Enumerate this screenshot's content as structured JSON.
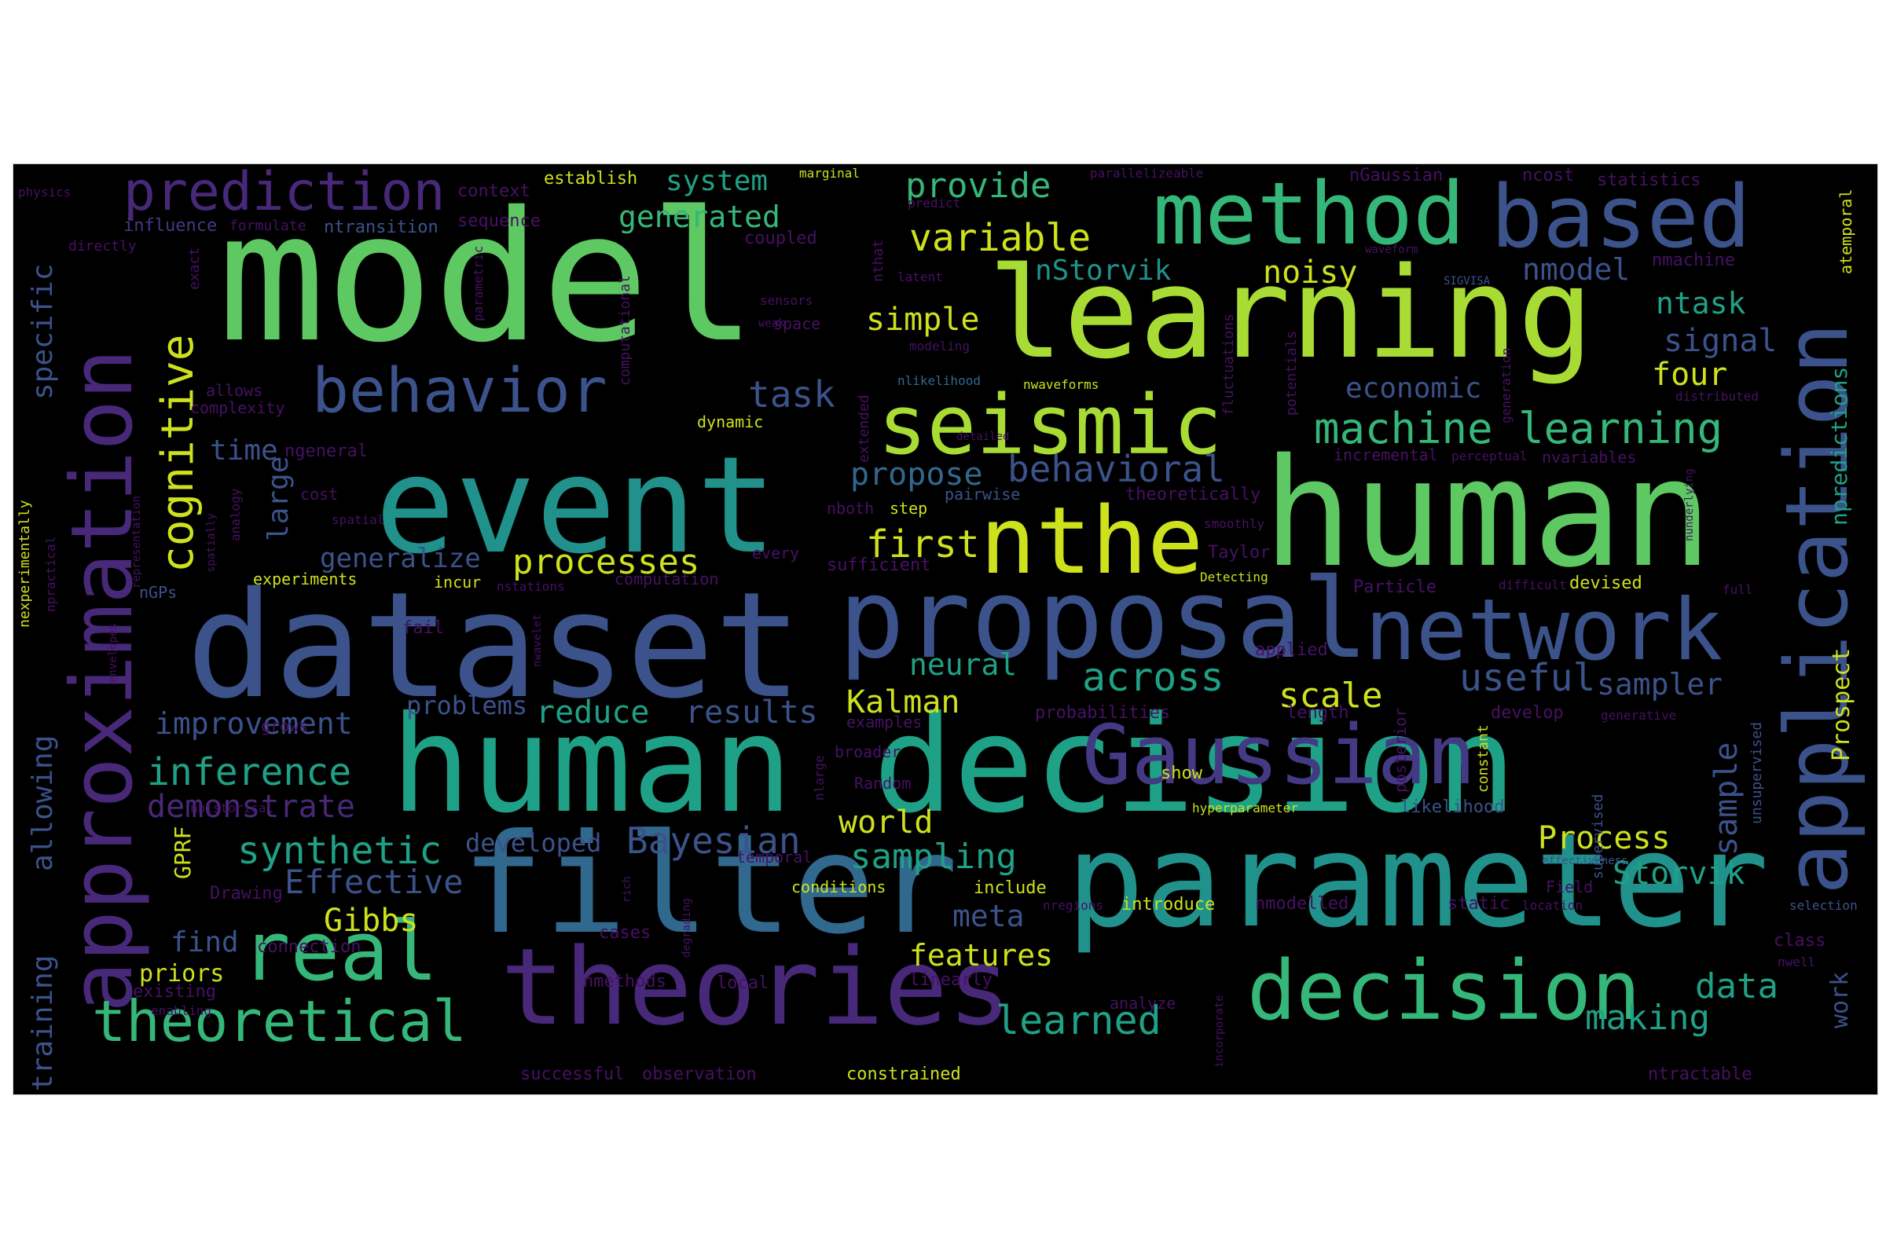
{
  "words": {
    "model": "model",
    "learning": "learning",
    "human": "human",
    "event": "event",
    "dataset": "dataset",
    "human_decision": "human decision",
    "filter": "filter",
    "parameter": "parameter",
    "proposal": "proposal",
    "theories": "theories",
    "method": "method",
    "based": "based",
    "seismic": "seismic",
    "nthe": "nthe",
    "network": "network",
    "application": "application",
    "approximation": "approximation",
    "Gaussian": "Gaussian",
    "decision": "decision",
    "real": "real",
    "behavior": "behavior",
    "prediction": "prediction",
    "cognitive": "cognitive",
    "theoretical": "theoretical",
    "machine_learning": "machine learning",
    "variable": "variable",
    "provide": "provide",
    "nStorvik": "nStorvik",
    "nmodel": "nmodel",
    "noisy": "noisy",
    "ntask": "ntask",
    "signal": "signal",
    "four": "four",
    "simple": "simple",
    "task": "task",
    "economic": "economic",
    "behavioral": "behavioral",
    "propose": "propose",
    "first": "first",
    "processes": "processes",
    "generalize": "generalize",
    "inference": "inference",
    "demonstrate": "demonstrate",
    "improvement": "improvement",
    "synthetic": "synthetic",
    "Effective": "Effective",
    "Gibbs": "Gibbs",
    "find": "find",
    "priors": "priors",
    "features": "features",
    "meta": "meta",
    "sampling": "sampling",
    "Bayesian": "Bayesian",
    "world": "world",
    "Kalman": "Kalman",
    "neural": "neural",
    "across": "across",
    "scale": "scale",
    "useful": "useful",
    "sampler": "sampler",
    "Process": "Process",
    "Storvik": "Storvik",
    "data": "data",
    "making": "making",
    "learned": "learned",
    "sample": "sample",
    "Prospect": "Prospect",
    "npredictions": "npredictions",
    "work": "work",
    "reduce": "reduce",
    "results": "results",
    "problems": "problems",
    "developed": "developed",
    "generated": "generated",
    "system": "system",
    "specific": "specific",
    "allowing": "allowing",
    "training": "training",
    "time": "time",
    "large": "large",
    "GPRF": "GPRF",
    "ngeneral": "ngeneral",
    "establish": "establish",
    "context": "context",
    "sequence": "sequence",
    "ntransition": "ntransition",
    "influence": "influence",
    "formulate": "formulate",
    "physics": "physics",
    "directly": "directly",
    "exact": "exact",
    "parametric": "parametric",
    "coupled": "coupled",
    "computational": "computational",
    "marginal": "marginal",
    "predict": "predict",
    "nthat": "nthat",
    "latent": "latent",
    "sensors": "sensors",
    "weak": "weak",
    "space": "space",
    "modeling": "modeling",
    "fluctuations": "fluctuations",
    "potentials": "potentials",
    "nlikelihood": "nlikelihood",
    "nwaveforms": "nwaveforms",
    "extended": "extended",
    "parallelizeable": "parallelizeable",
    "nGaussian": "nGaussian",
    "ncost": "ncost",
    "statistics": "statistics",
    "waveform": "waveform",
    "SIGVISA": "SIGVISA",
    "generation": "generation",
    "distributed": "distributed",
    "atemporal": "atemporal",
    "nmachine": "nmachine",
    "incremental": "incremental",
    "perceptual": "perceptual",
    "nvariables": "nvariables",
    "nunderlying": "nunderlying",
    "theoretically": "theoretically",
    "smoothly": "smoothly",
    "pairwise": "pairwise",
    "step": "step",
    "nboth": "nboth",
    "sufficient": "sufficient",
    "every": "every",
    "Taylor": "Taylor",
    "Detecting": "Detecting",
    "computation": "computation",
    "nstations": "nstations",
    "incur": "incur",
    "experiments": "experiments",
    "nGPs": "nGPs",
    "cost": "cost",
    "spatial": "spatial",
    "spatially": "spatially",
    "analogy": "analogy",
    "allows": "allows",
    "complexity": "complexity",
    "dynamic": "dynamic",
    "detailed": "detailed",
    "nexperimentally": "nexperimentally",
    "npractical": "npractical",
    "representation": "representation",
    "envelopes": "envelopes",
    "fail": "fail",
    "nwavelet": "nwavelet",
    "applied": "applied",
    "Particle": "Particle",
    "devised": "devised",
    "difficult": "difficult",
    "full": "full",
    "probabilities": "probabilities",
    "length": "length",
    "examples": "examples",
    "develop": "develop",
    "generative": "generative",
    "grows": "grows",
    "broader": "broader",
    "Random": "Random",
    "nlarge": "nlarge",
    "posterior": "posterior",
    "constant": "constant",
    "show": "show",
    "supervised": "supervised",
    "unsupervised": "unsupervised",
    "nhistorical": "nhistorical",
    "hyperparameter": "hyperparameter",
    "likelihood": "likelihood",
    "temporal": "temporal",
    "effectiveness": "effectiveness",
    "rich": "rich",
    "Drawing": "Drawing",
    "conditions": "conditions",
    "include": "include",
    "Field": "Field",
    "nregions": "nregions",
    "introduce": "introduce",
    "nmodelled": "nmodelled",
    "static": "static",
    "location": "location",
    "selection": "selection",
    "connection": "connection",
    "cases": "cases",
    "degrading": "degrading",
    "existing": "existing",
    "nmethods": "nmethods",
    "local": "local",
    "linearly": "linearly",
    "enabling": "enabling",
    "analyze": "analyze",
    "incorporate": "incorporate",
    "class": "class",
    "nwell": "nwell",
    "successful": "successful",
    "observation": "observation",
    "constrained": "constrained",
    "ntractable": "ntractable"
  }
}
